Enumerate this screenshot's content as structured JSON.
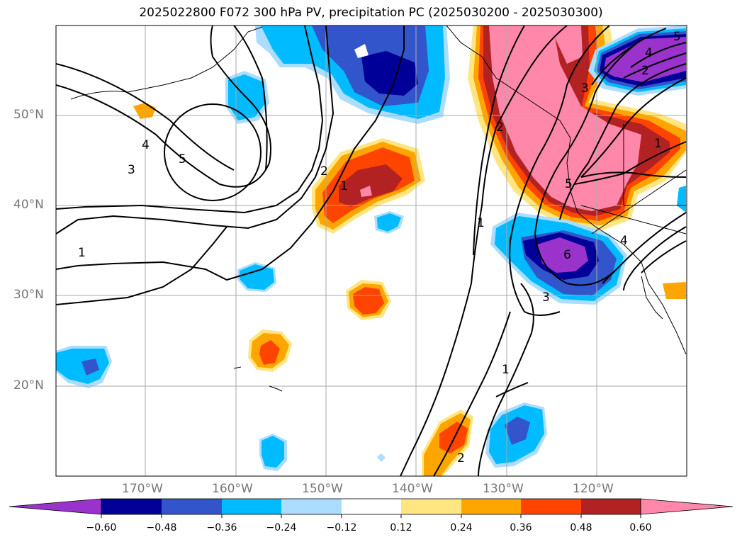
{
  "title": "2025022800 F072 300 hPa PV, precipitation PC (2025030200 - 2025030300)",
  "map": {
    "lat_labels": [
      "50°N",
      "40°N",
      "30°N",
      "20°N"
    ],
    "lon_labels": [
      "170°W",
      "160°W",
      "150°W",
      "140°W",
      "130°W",
      "120°W"
    ],
    "contour_labels": [
      "1",
      "2",
      "3",
      "4",
      "5",
      "6"
    ]
  },
  "colorbar": {
    "ticks": [
      "−0.60",
      "−0.48",
      "−0.36",
      "−0.24",
      "−0.12",
      "0.12",
      "0.24",
      "0.36",
      "0.48",
      "0.60"
    ],
    "colors": [
      "#9933cc",
      "#000099",
      "#3355cc",
      "#00bbff",
      "#aaddff",
      "#ffffff",
      "#ffe680",
      "#ffa500",
      "#ff4400",
      "#b22222",
      "#ff88aa"
    ],
    "extend": "both"
  }
}
